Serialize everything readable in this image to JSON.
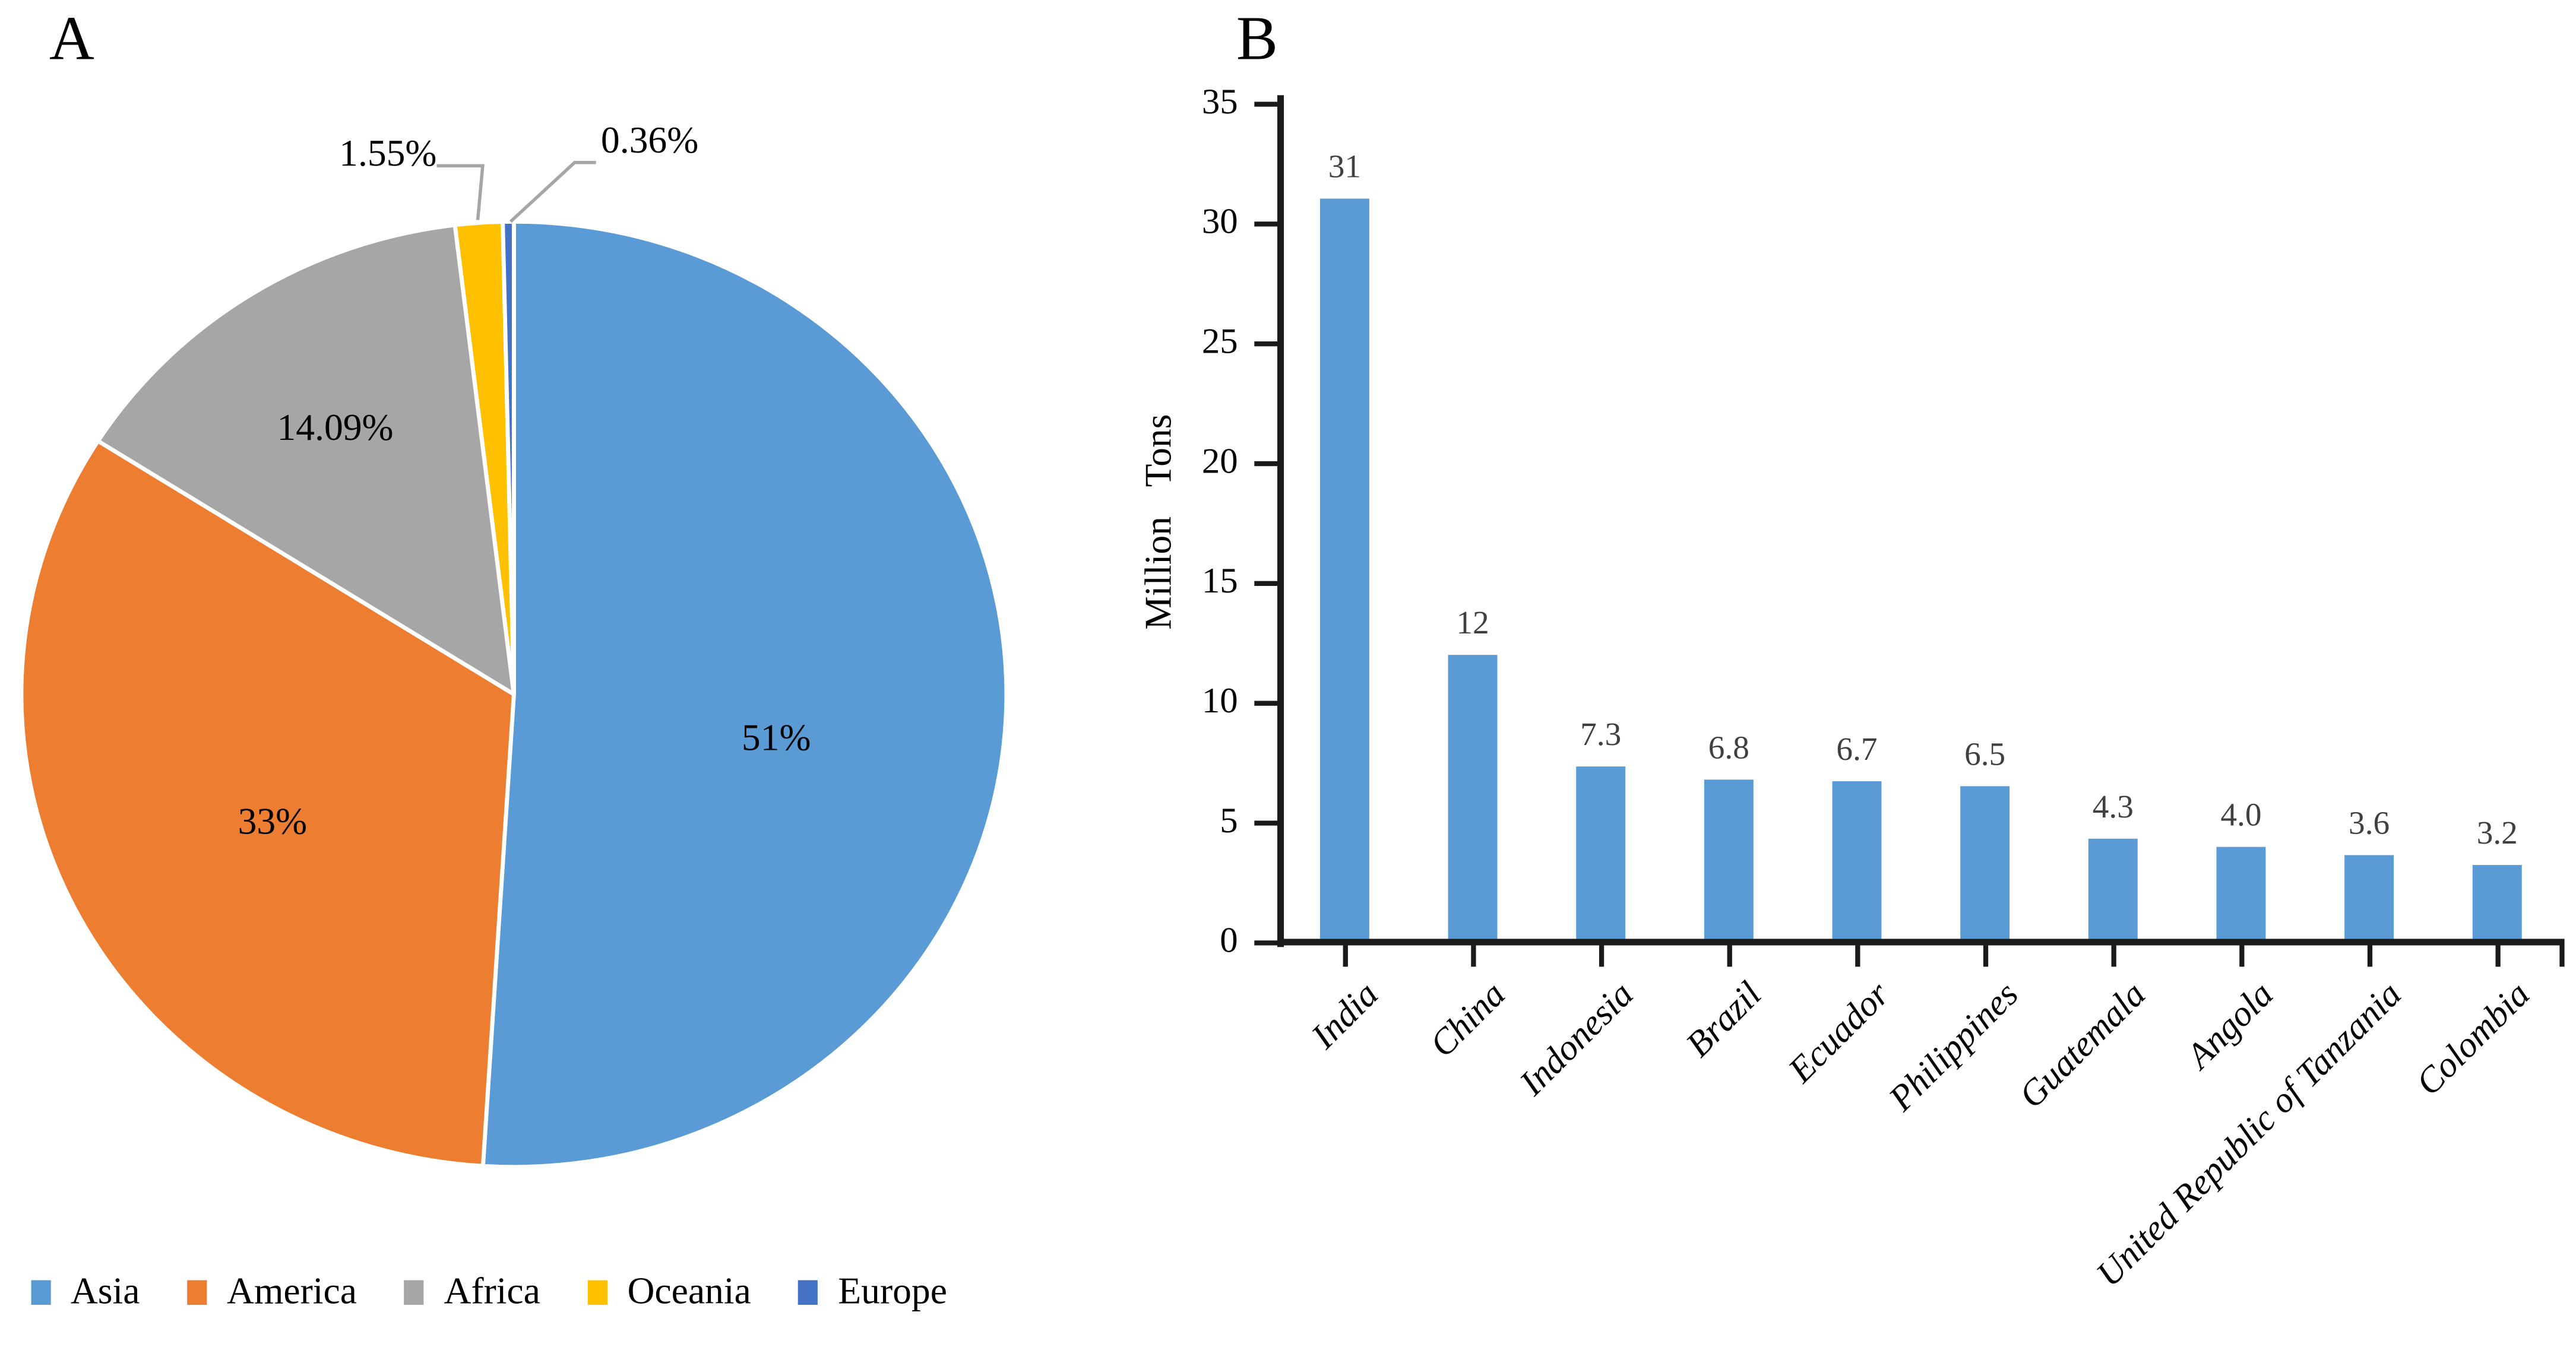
{
  "panels": {
    "a": {
      "label": "A"
    },
    "b": {
      "label": "B"
    }
  },
  "chart_data": [
    {
      "type": "pie",
      "panel": "A",
      "categories": [
        "Asia",
        "America",
        "Africa",
        "Oceania",
        "Europe"
      ],
      "values": [
        51,
        33,
        14.09,
        1.55,
        0.36
      ],
      "slice_labels": [
        "51%",
        "33%",
        "14.09%",
        "1.55%",
        "0.36%"
      ],
      "colors": [
        "#5B9BD5",
        "#ED7D31",
        "#A6A6A6",
        "#FFC000",
        "#4472C4"
      ],
      "start_angle_deg": 0,
      "direction": "clockwise",
      "separator_color": "#FFFFFF",
      "leader_line_color": "#A6A6A6",
      "legend_position": "bottom"
    },
    {
      "type": "bar",
      "panel": "B",
      "categories": [
        "India",
        "China",
        "Indonesia",
        "Brazil",
        "Ecuador",
        "Philippines",
        "Guatemala",
        "Angola",
        "United Republic of Tanzania",
        "Colombia"
      ],
      "values": [
        31,
        12,
        7.3,
        6.8,
        6.7,
        6.5,
        4.3,
        4,
        3.6,
        3.2
      ],
      "value_labels": [
        "31",
        "12",
        "7.3",
        "6.8",
        "6.7",
        "6.5",
        "4.3",
        "4.0",
        "3.6",
        "3.2"
      ],
      "title": "",
      "xlabel": "",
      "ylabel": "Million Tons",
      "ylim": [
        0,
        35
      ],
      "ytick_step": 5,
      "ytick_labels": [
        "0",
        "5",
        "10",
        "15",
        "20",
        "25",
        "30",
        "35"
      ],
      "grid": false,
      "legend": null,
      "bar_color": "#5B9BD5",
      "axis_color": "#1A1A1A",
      "value_label_color": "#404040",
      "category_label_style": "italic, rotated 45deg"
    }
  ]
}
